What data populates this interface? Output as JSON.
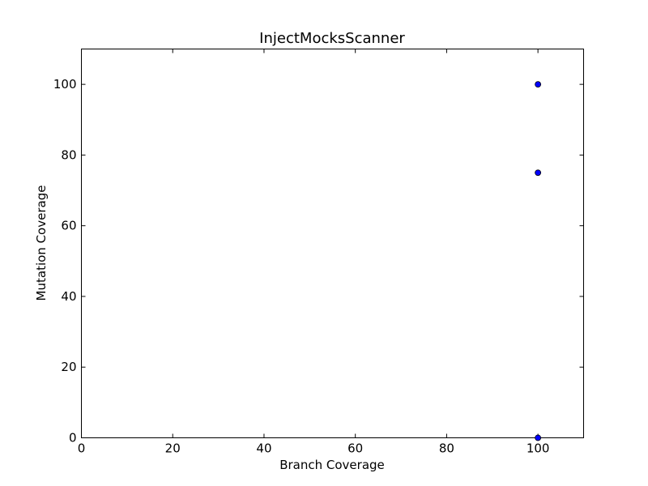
{
  "chart_data": {
    "type": "scatter",
    "title": "InjectMocksScanner",
    "xlabel": "Branch Coverage",
    "ylabel": "Mutation Coverage",
    "xlim": [
      0,
      110
    ],
    "ylim": [
      0,
      110
    ],
    "xticks": [
      0,
      20,
      40,
      60,
      80,
      100
    ],
    "yticks": [
      0,
      20,
      40,
      60,
      80,
      100
    ],
    "grid": false,
    "series": [
      {
        "points": [
          {
            "x": 100,
            "y": 100
          },
          {
            "x": 100,
            "y": 75
          },
          {
            "x": 100,
            "y": 0
          }
        ],
        "color": "#0000ff"
      }
    ]
  }
}
